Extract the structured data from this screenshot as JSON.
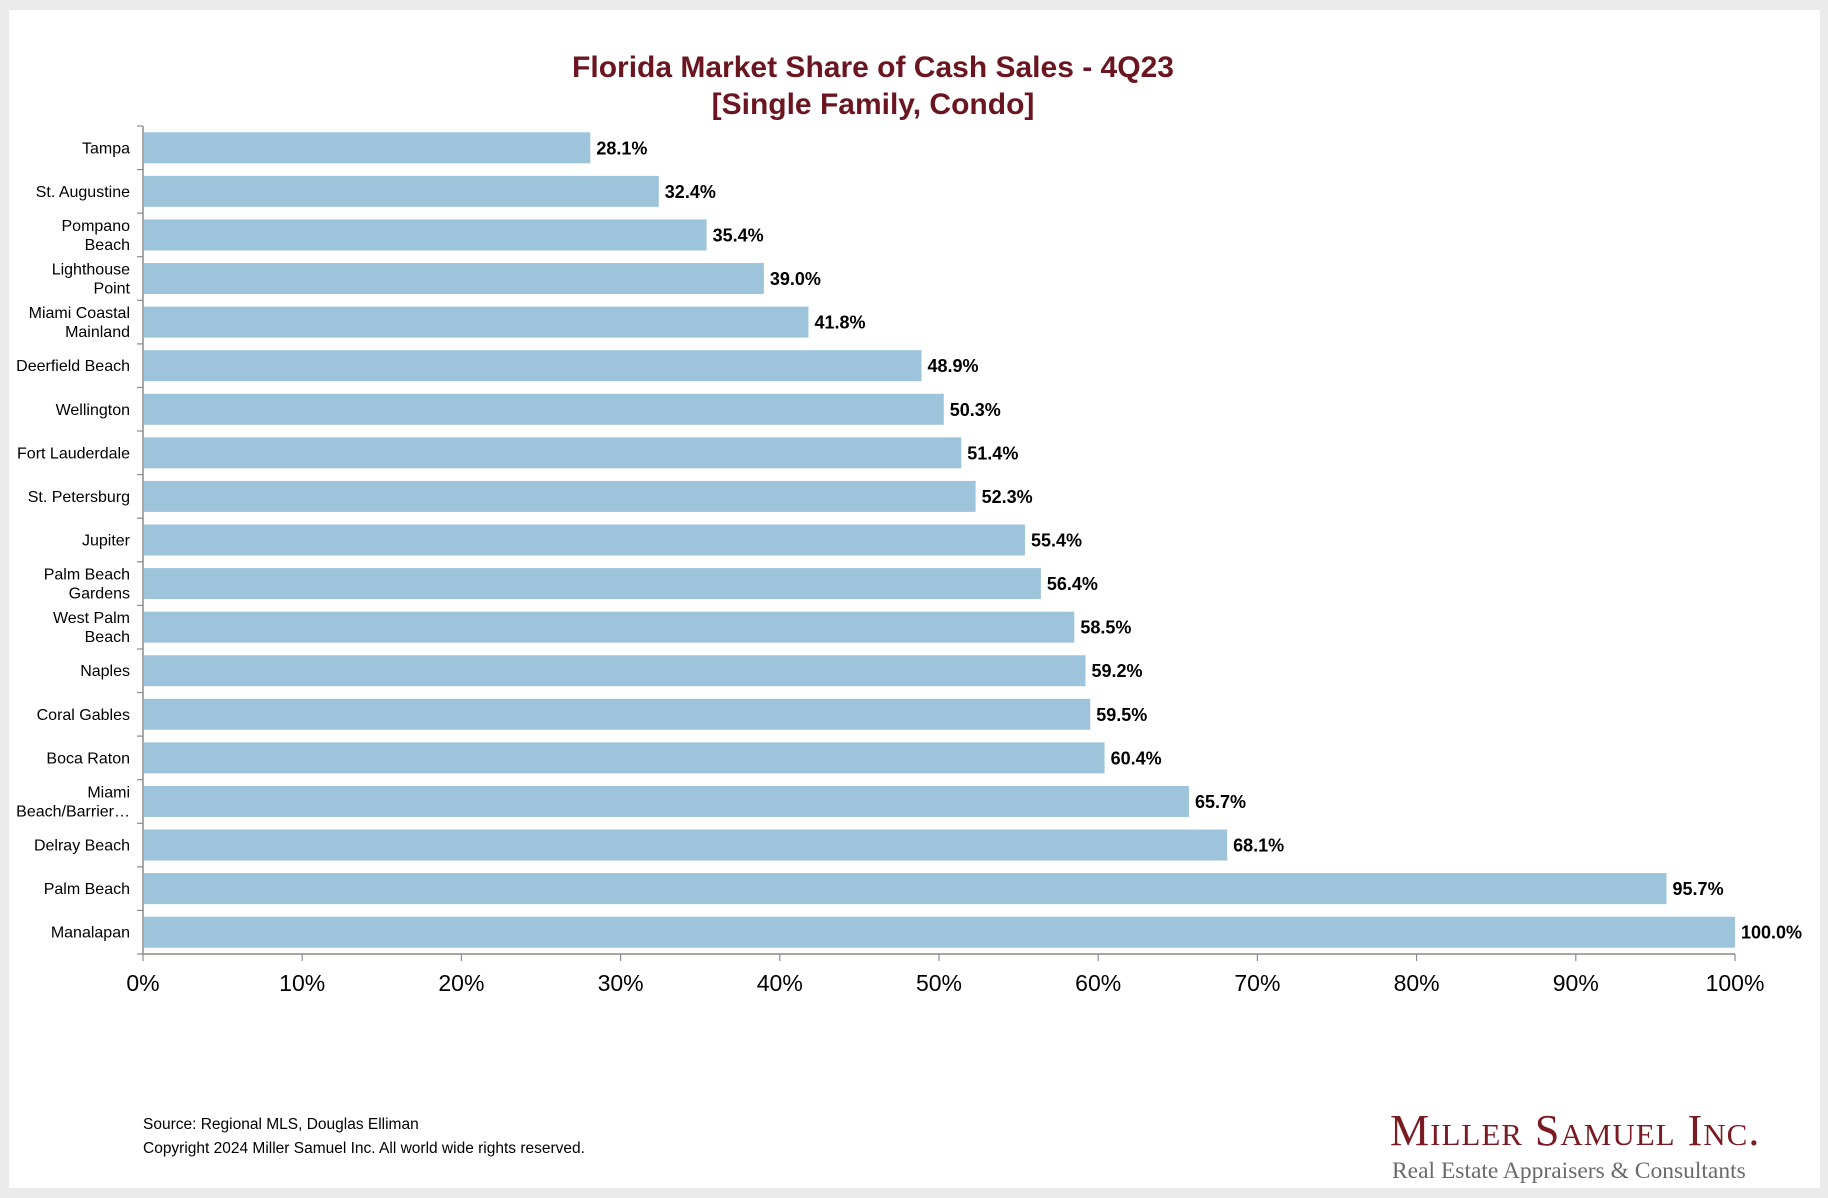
{
  "chart_data": {
    "type": "bar",
    "orientation": "horizontal",
    "title": "Florida Market Share of Cash Sales - 4Q23",
    "subtitle": "[Single Family, Condo]",
    "categories": [
      "Tampa",
      "St. Augustine",
      "Pompano Beach",
      "Lighthouse Point",
      "Miami Coastal Mainland",
      "Deerfield Beach",
      "Wellington",
      "Fort Lauderdale",
      "St. Petersburg",
      "Jupiter",
      "Palm Beach Gardens",
      "West Palm Beach",
      "Naples",
      "Coral Gables",
      "Boca Raton",
      "Miami Beach/Barrier…",
      "Delray Beach",
      "Palm Beach",
      "Manalapan"
    ],
    "category_lines": [
      [
        "Tampa"
      ],
      [
        "St. Augustine"
      ],
      [
        "Pompano",
        "Beach"
      ],
      [
        "Lighthouse",
        "Point"
      ],
      [
        "Miami Coastal",
        "Mainland"
      ],
      [
        "Deerfield Beach"
      ],
      [
        "Wellington"
      ],
      [
        "Fort Lauderdale"
      ],
      [
        "St. Petersburg"
      ],
      [
        "Jupiter"
      ],
      [
        "Palm Beach",
        "Gardens"
      ],
      [
        "West Palm",
        "Beach"
      ],
      [
        "Naples"
      ],
      [
        "Coral Gables"
      ],
      [
        "Boca Raton"
      ],
      [
        "Miami",
        "Beach/Barrier…"
      ],
      [
        "Delray Beach"
      ],
      [
        "Palm Beach"
      ],
      [
        "Manalapan"
      ]
    ],
    "values": [
      28.1,
      32.4,
      35.4,
      39.0,
      41.8,
      48.9,
      50.3,
      51.4,
      52.3,
      55.4,
      56.4,
      58.5,
      59.2,
      59.5,
      60.4,
      65.7,
      68.1,
      95.7,
      100.0
    ],
    "value_labels": [
      "28.1%",
      "32.4%",
      "35.4%",
      "39.0%",
      "41.8%",
      "48.9%",
      "50.3%",
      "51.4%",
      "52.3%",
      "55.4%",
      "56.4%",
      "58.5%",
      "59.2%",
      "59.5%",
      "60.4%",
      "65.7%",
      "68.1%",
      "95.7%",
      "100.0%"
    ],
    "xlim": [
      0,
      100
    ],
    "x_ticks": [
      0,
      10,
      20,
      30,
      40,
      50,
      60,
      70,
      80,
      90,
      100
    ],
    "x_tick_labels": [
      "0%",
      "10%",
      "20%",
      "30%",
      "40%",
      "50%",
      "60%",
      "70%",
      "80%",
      "90%",
      "100%"
    ],
    "xlabel": "",
    "ylabel": "",
    "grid": false,
    "legend": "none",
    "colors": {
      "bar": "#9ec4db",
      "title": "#6b1520",
      "axis": "#8c8c8c"
    }
  },
  "footer": {
    "source": "Source: Regional MLS, Douglas Elliman",
    "copyright": "Copyright 2024 Miller Samuel Inc.  All world wide rights reserved."
  },
  "logo": {
    "name": "Miller Samuel Inc.",
    "tagline": "Real Estate Appraisers & Consultants"
  }
}
